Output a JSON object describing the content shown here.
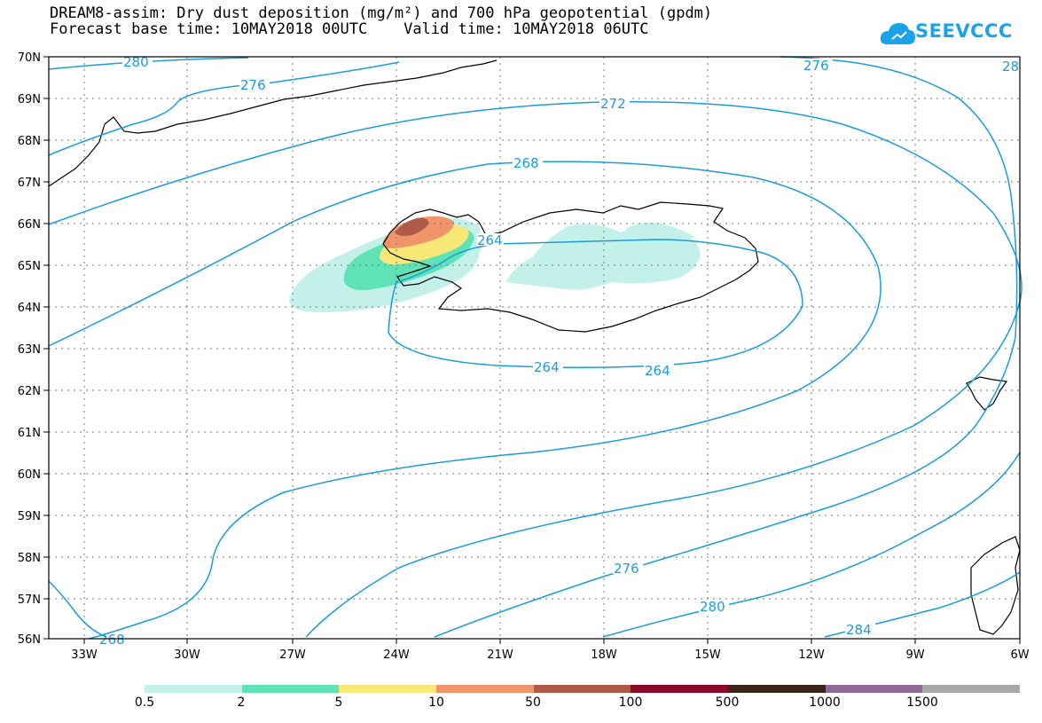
{
  "title": {
    "line1": "DREAM8-assim: Dry dust deposition (mg/m²) and 700 hPa geopotential (gpdm)",
    "line2": "Forecast base time: 10MAY2018 00UTC    Valid time: 10MAY2018 06UTC"
  },
  "logo": {
    "text": "SEEVCCC",
    "icon": "cloud-icon",
    "color": "#1aa3e8"
  },
  "map": {
    "lat_labels": [
      "70N",
      "69N",
      "68N",
      "67N",
      "66N",
      "65N",
      "64N",
      "63N",
      "62N",
      "61N",
      "60N",
      "59N",
      "58N",
      "57N",
      "56N"
    ],
    "lon_labels": [
      "33W",
      "30W",
      "27W",
      "24W",
      "21W",
      "18W",
      "15W",
      "12W",
      "9W",
      "6W"
    ],
    "contour_labels": [
      "280",
      "276",
      "276",
      "272",
      "268",
      "264",
      "264",
      "264",
      "276",
      "280",
      "284",
      "268",
      "28"
    ],
    "contour_color": "#1a9be0",
    "coastline_color": "#000000"
  },
  "legend": {
    "colors": [
      "#c3f1ea",
      "#5ee2b6",
      "#f8e878",
      "#f0956a",
      "#b05a48",
      "#8c0a28",
      "#3a2418",
      "#8e6a98",
      "#a8a8a8"
    ],
    "labels": [
      "0.5",
      "2",
      "5",
      "10",
      "50",
      "100",
      "500",
      "1000",
      "1500"
    ]
  }
}
